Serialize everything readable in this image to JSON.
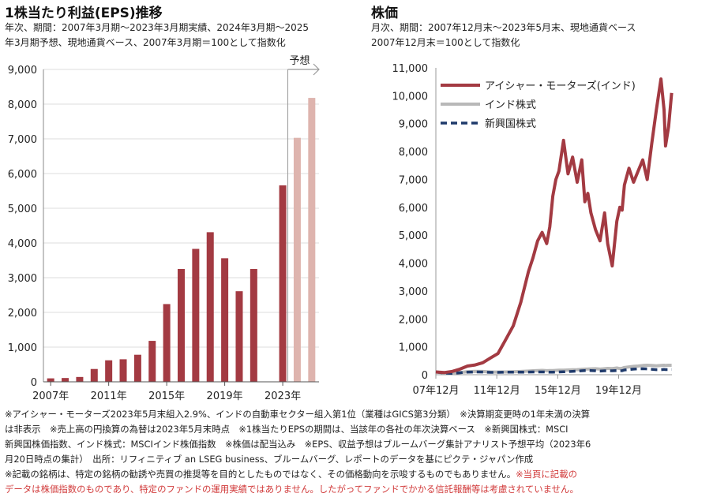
{
  "left": {
    "title": "1株当たり利益(EPS)推移",
    "subtitle_line1": "年次、期間：2007年3月期～2023年3月期実績、2024年3月期～2025",
    "subtitle_line2": "年3月期予想、現地通貨ベース、2007年3月期＝100として指数化",
    "forecast_label": "予想"
  },
  "right": {
    "title": "株価",
    "subtitle_line1": "月次、期間：2007年12月末～2023年5月末、現地通貨ベース",
    "subtitle_line2": "2007年12月末＝100として指数化"
  },
  "chart_data": [
    {
      "type": "bar",
      "title": "1株当たり利益(EPS)推移",
      "categories": [
        "2007",
        "2008",
        "2009",
        "2010",
        "2011",
        "2012",
        "2013",
        "2014",
        "2015",
        "2016",
        "2017",
        "2018",
        "2019",
        "2020",
        "2021",
        "2022",
        "2023",
        "2024",
        "2025"
      ],
      "values": [
        100,
        110,
        140,
        370,
        620,
        650,
        780,
        1180,
        2240,
        3250,
        3830,
        4310,
        3560,
        2610,
        3250,
        null,
        5660,
        7030,
        8180
      ],
      "forecast_from_index": 17,
      "tick_labels": [
        "2007年",
        "2011年",
        "2015年",
        "2019年",
        "2023年"
      ],
      "tick_index": [
        0,
        4,
        8,
        12,
        16
      ],
      "ylim": [
        0,
        9000
      ],
      "yticks": [
        "0",
        "1,000",
        "2,000",
        "3,000",
        "4,000",
        "5,000",
        "6,000",
        "7,000",
        "8,000",
        "9,000"
      ],
      "colors": {
        "actual": "#a33a42",
        "forecast": "#deb4ae"
      }
    },
    {
      "type": "line",
      "title": "株価",
      "x": [
        2007.92,
        2008.5,
        2009.0,
        2009.5,
        2010.0,
        2010.5,
        2011.0,
        2011.5,
        2012.0,
        2012.5,
        2013.0,
        2013.5,
        2014.0,
        2014.3,
        2014.6,
        2014.9,
        2015.2,
        2015.4,
        2015.6,
        2015.8,
        2016.0,
        2016.3,
        2016.6,
        2016.9,
        2017.2,
        2017.5,
        2017.7,
        2017.9,
        2018.1,
        2018.4,
        2018.7,
        2019.0,
        2019.2,
        2019.5,
        2019.8,
        2020.0,
        2020.15,
        2020.3,
        2020.6,
        2020.9,
        2021.2,
        2021.5,
        2021.8,
        2022.1,
        2022.4,
        2022.7,
        2022.9,
        2023.0,
        2023.2,
        2023.4
      ],
      "series": [
        {
          "name": "アイシャー・モーターズ(インド)",
          "color": "#a33a42",
          "values": [
            100,
            80,
            120,
            200,
            310,
            350,
            430,
            600,
            760,
            1250,
            1750,
            2600,
            3700,
            4200,
            4800,
            5100,
            4700,
            5300,
            6400,
            7000,
            7300,
            8400,
            7200,
            7800,
            6900,
            7700,
            6200,
            6500,
            5800,
            5200,
            4800,
            5800,
            4700,
            3900,
            5500,
            6000,
            5900,
            6800,
            7400,
            6900,
            7300,
            7700,
            7000,
            8300,
            9500,
            10600,
            9500,
            8200,
            8900,
            10100
          ]
        },
        {
          "name": "インド株式",
          "color": "#b8b8b8",
          "values": [
            100,
            60,
            50,
            80,
            110,
            120,
            115,
            100,
            95,
            100,
            105,
            115,
            130,
            140,
            150,
            155,
            145,
            150,
            150,
            155,
            160,
            165,
            170,
            175,
            180,
            195,
            200,
            205,
            210,
            215,
            200,
            215,
            225,
            220,
            240,
            220,
            230,
            260,
            280,
            300,
            310,
            330,
            340,
            330,
            320,
            330,
            340,
            330,
            340,
            340
          ]
        },
        {
          "name": "新興国株式",
          "color": "#1f3a6b",
          "values": [
            100,
            60,
            45,
            70,
            90,
            100,
            95,
            85,
            85,
            90,
            90,
            90,
            95,
            100,
            100,
            100,
            95,
            90,
            90,
            95,
            100,
            105,
            110,
            120,
            130,
            140,
            150,
            155,
            150,
            140,
            130,
            140,
            145,
            140,
            150,
            140,
            145,
            170,
            185,
            200,
            210,
            215,
            210,
            195,
            180,
            180,
            190,
            185,
            185,
            190
          ]
        }
      ],
      "tick_labels": [
        "07年12月",
        "11年12月",
        "15年12月",
        "19年12月"
      ],
      "tick_x": [
        2007.92,
        2011.92,
        2015.92,
        2019.92
      ],
      "xlim": [
        2007.92,
        2023.42
      ],
      "ylim": [
        0,
        11000
      ],
      "yticks": [
        "0",
        "1,000",
        "2,000",
        "3,000",
        "4,000",
        "5,000",
        "6,000",
        "7,000",
        "8,000",
        "9,000",
        "10,000",
        "11,000"
      ]
    }
  ],
  "notes": {
    "line1": "※アイシャー・モーターズ2023年5月末組入2.9%、インドの自動車セクター組入第1位（業種はGICS第3分類）　※決算期変更時の1年未満の決算",
    "line2": "は非表示　※売上高の円換算の為替は2023年5月末時点　※1株当たりEPSの期間は、当該年の各社の年次決算ベース　※新興国株式：MSCI",
    "line3": "新興国株価指数、インド株式：MSCIインド株価指数　※株価は配当込み　※EPS、収益予想はブルームバーグ集計アナリスト予想平均（2023年6",
    "line4": "月20日時点の集計）　出所：リフィニティブ an LSEG business、ブルームバーグ、レポートのデータを基にピクテ・ジャパン作成",
    "line5": "※記載の銘柄は、特定の銘柄の勧誘や売買の推奨等を目的としたものではなく、その価格動向を示唆するものでもありません。",
    "line5_red": "※当頁に記載の",
    "line6_red": "データは株価指数のものであり、特定のファンドの運用実績ではありません。したがってファンドでかかる信託報酬等は考慮されていません。"
  }
}
